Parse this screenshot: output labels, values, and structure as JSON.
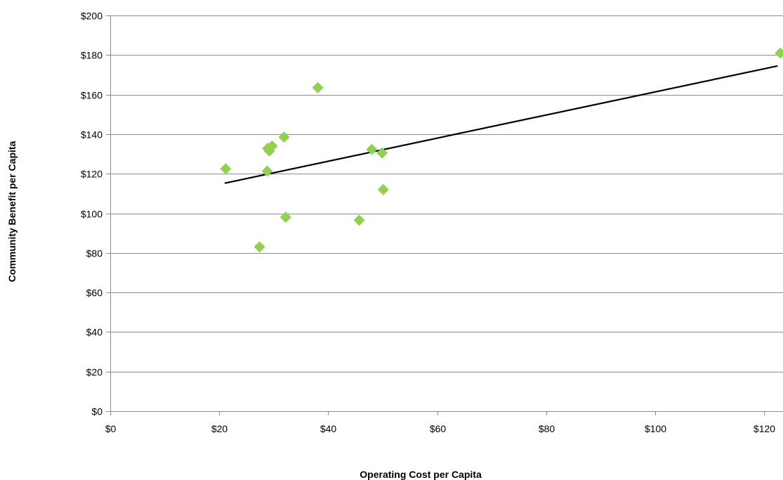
{
  "chart_data": {
    "type": "scatter",
    "title": "",
    "xlabel": "Operating Cost per Capita",
    "ylabel": "Community Benefit per Capita",
    "xlim": [
      0,
      125
    ],
    "ylim": [
      0,
      200
    ],
    "x_ticks": [
      0,
      20,
      40,
      60,
      80,
      100,
      120
    ],
    "x_tick_labels": [
      "$0",
      "$20",
      "$40",
      "$60",
      "$80",
      "$100",
      "$120"
    ],
    "y_ticks": [
      0,
      20,
      40,
      60,
      80,
      100,
      120,
      140,
      160,
      180,
      200
    ],
    "y_tick_labels": [
      "$0",
      "$20",
      "$40",
      "$60",
      "$80",
      "$100",
      "$120",
      "$140",
      "$160",
      "$180",
      "$200"
    ],
    "grid": "horizontal",
    "marker": "diamond",
    "colors": {
      "marker": "#92d050",
      "trendline": "#000000",
      "grid": "#8c8c8c"
    },
    "series": [
      {
        "points": [
          {
            "x": 21.2,
            "y": 122.5
          },
          {
            "x": 27.4,
            "y": 83.0
          },
          {
            "x": 28.8,
            "y": 121.3
          },
          {
            "x": 28.9,
            "y": 132.8
          },
          {
            "x": 29.2,
            "y": 131.5
          },
          {
            "x": 29.7,
            "y": 134.0
          },
          {
            "x": 31.9,
            "y": 138.5
          },
          {
            "x": 32.2,
            "y": 98.0
          },
          {
            "x": 38.1,
            "y": 163.5
          },
          {
            "x": 45.7,
            "y": 96.5
          },
          {
            "x": 48.0,
            "y": 132.3
          },
          {
            "x": 49.9,
            "y": 130.5
          },
          {
            "x": 50.1,
            "y": 112.0
          },
          {
            "x": 123.0,
            "y": 181.0
          }
        ]
      }
    ],
    "trendline": {
      "type": "linear",
      "start": {
        "x": 21.0,
        "y": 115.2
      },
      "end": {
        "x": 122.5,
        "y": 174.5
      }
    }
  }
}
